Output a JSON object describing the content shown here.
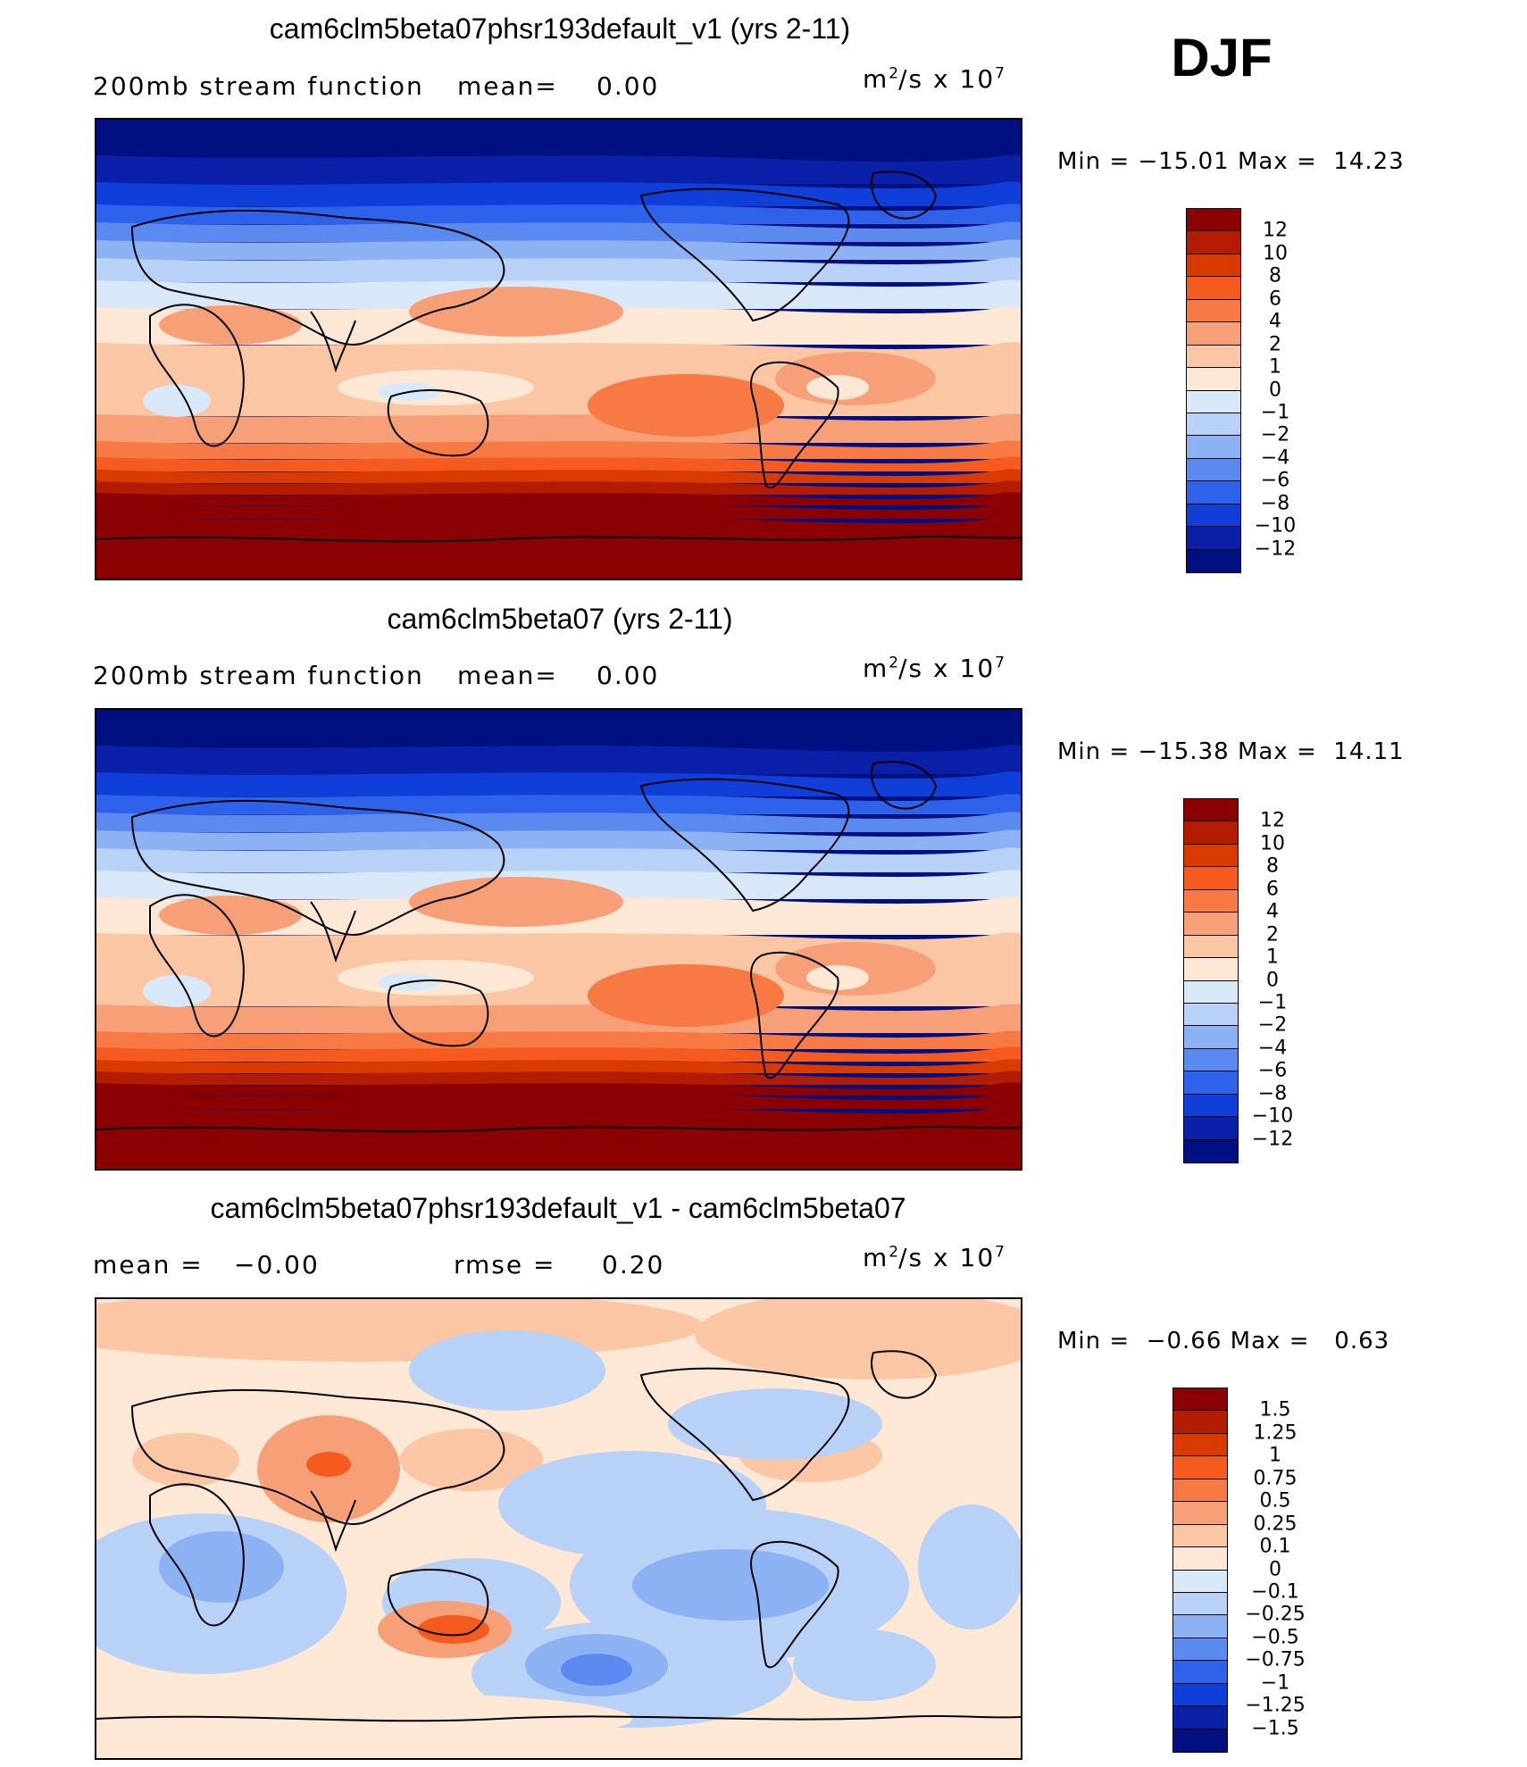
{
  "season": "DJF",
  "chart_data": [
    {
      "type": "heatmap",
      "title": "cam6clm5beta07phsr193default_v1 (yrs 2-11)",
      "variable": "200mb stream function",
      "mean_label": "mean=",
      "mean": "0.00",
      "units_base": "m",
      "units_exp": "2",
      "units_mid": "/s x 10",
      "units_scale_exp": "7",
      "min": "−15.01",
      "max": "14.23",
      "levels": [
        "12",
        "10",
        "8",
        "6",
        "4",
        "2",
        "1",
        "0",
        "−1",
        "−2",
        "−4",
        "−6",
        "−8",
        "−10",
        "−12"
      ],
      "colors": [
        "#8b0000",
        "#b31c00",
        "#d93a00",
        "#f55a1f",
        "#f77a45",
        "#f7a078",
        "#fbc6a4",
        "#fde8d6",
        "#d8e8f8",
        "#b7d1f7",
        "#8cb2f4",
        "#5a8aef",
        "#2e62ea",
        "#0f3fd8",
        "#0a20a8",
        "#001080"
      ]
    },
    {
      "type": "heatmap",
      "title": "cam6clm5beta07 (yrs 2-11)",
      "variable": "200mb stream function",
      "mean_label": "mean=",
      "mean": "0.00",
      "units_base": "m",
      "units_exp": "2",
      "units_mid": "/s x 10",
      "units_scale_exp": "7",
      "min": "−15.38",
      "max": "14.11",
      "levels": [
        "12",
        "10",
        "8",
        "6",
        "4",
        "2",
        "1",
        "0",
        "−1",
        "−2",
        "−4",
        "−6",
        "−8",
        "−10",
        "−12"
      ],
      "colors": [
        "#8b0000",
        "#b31c00",
        "#d93a00",
        "#f55a1f",
        "#f77a45",
        "#f7a078",
        "#fbc6a4",
        "#fde8d6",
        "#d8e8f8",
        "#b7d1f7",
        "#8cb2f4",
        "#5a8aef",
        "#2e62ea",
        "#0f3fd8",
        "#0a20a8",
        "#001080"
      ]
    },
    {
      "type": "heatmap",
      "title": "cam6clm5beta07phsr193default_v1 - cam6clm5beta07",
      "mean_label": "mean =",
      "mean": "−0.00",
      "rmse_label": "rmse =",
      "rmse": "0.20",
      "units_base": "m",
      "units_exp": "2",
      "units_mid": "/s x 10",
      "units_scale_exp": "7",
      "min": "−0.66",
      "max": "0.63",
      "levels": [
        "1.5",
        "1.25",
        "1",
        "0.75",
        "0.5",
        "0.25",
        "0.1",
        "0",
        "−0.1",
        "−0.25",
        "−0.5",
        "−0.75",
        "−1",
        "−1.25",
        "−1.5"
      ],
      "colors": [
        "#8b0000",
        "#b31c00",
        "#d93a00",
        "#f55a1f",
        "#f77a45",
        "#f7a078",
        "#fbc6a4",
        "#fde8d6",
        "#d8e8f8",
        "#b7d1f7",
        "#8cb2f4",
        "#5a8aef",
        "#2e62ea",
        "#0f3fd8",
        "#0a20a8",
        "#001080"
      ]
    }
  ],
  "labels": {
    "min": "Min =",
    "max": "Max ="
  }
}
